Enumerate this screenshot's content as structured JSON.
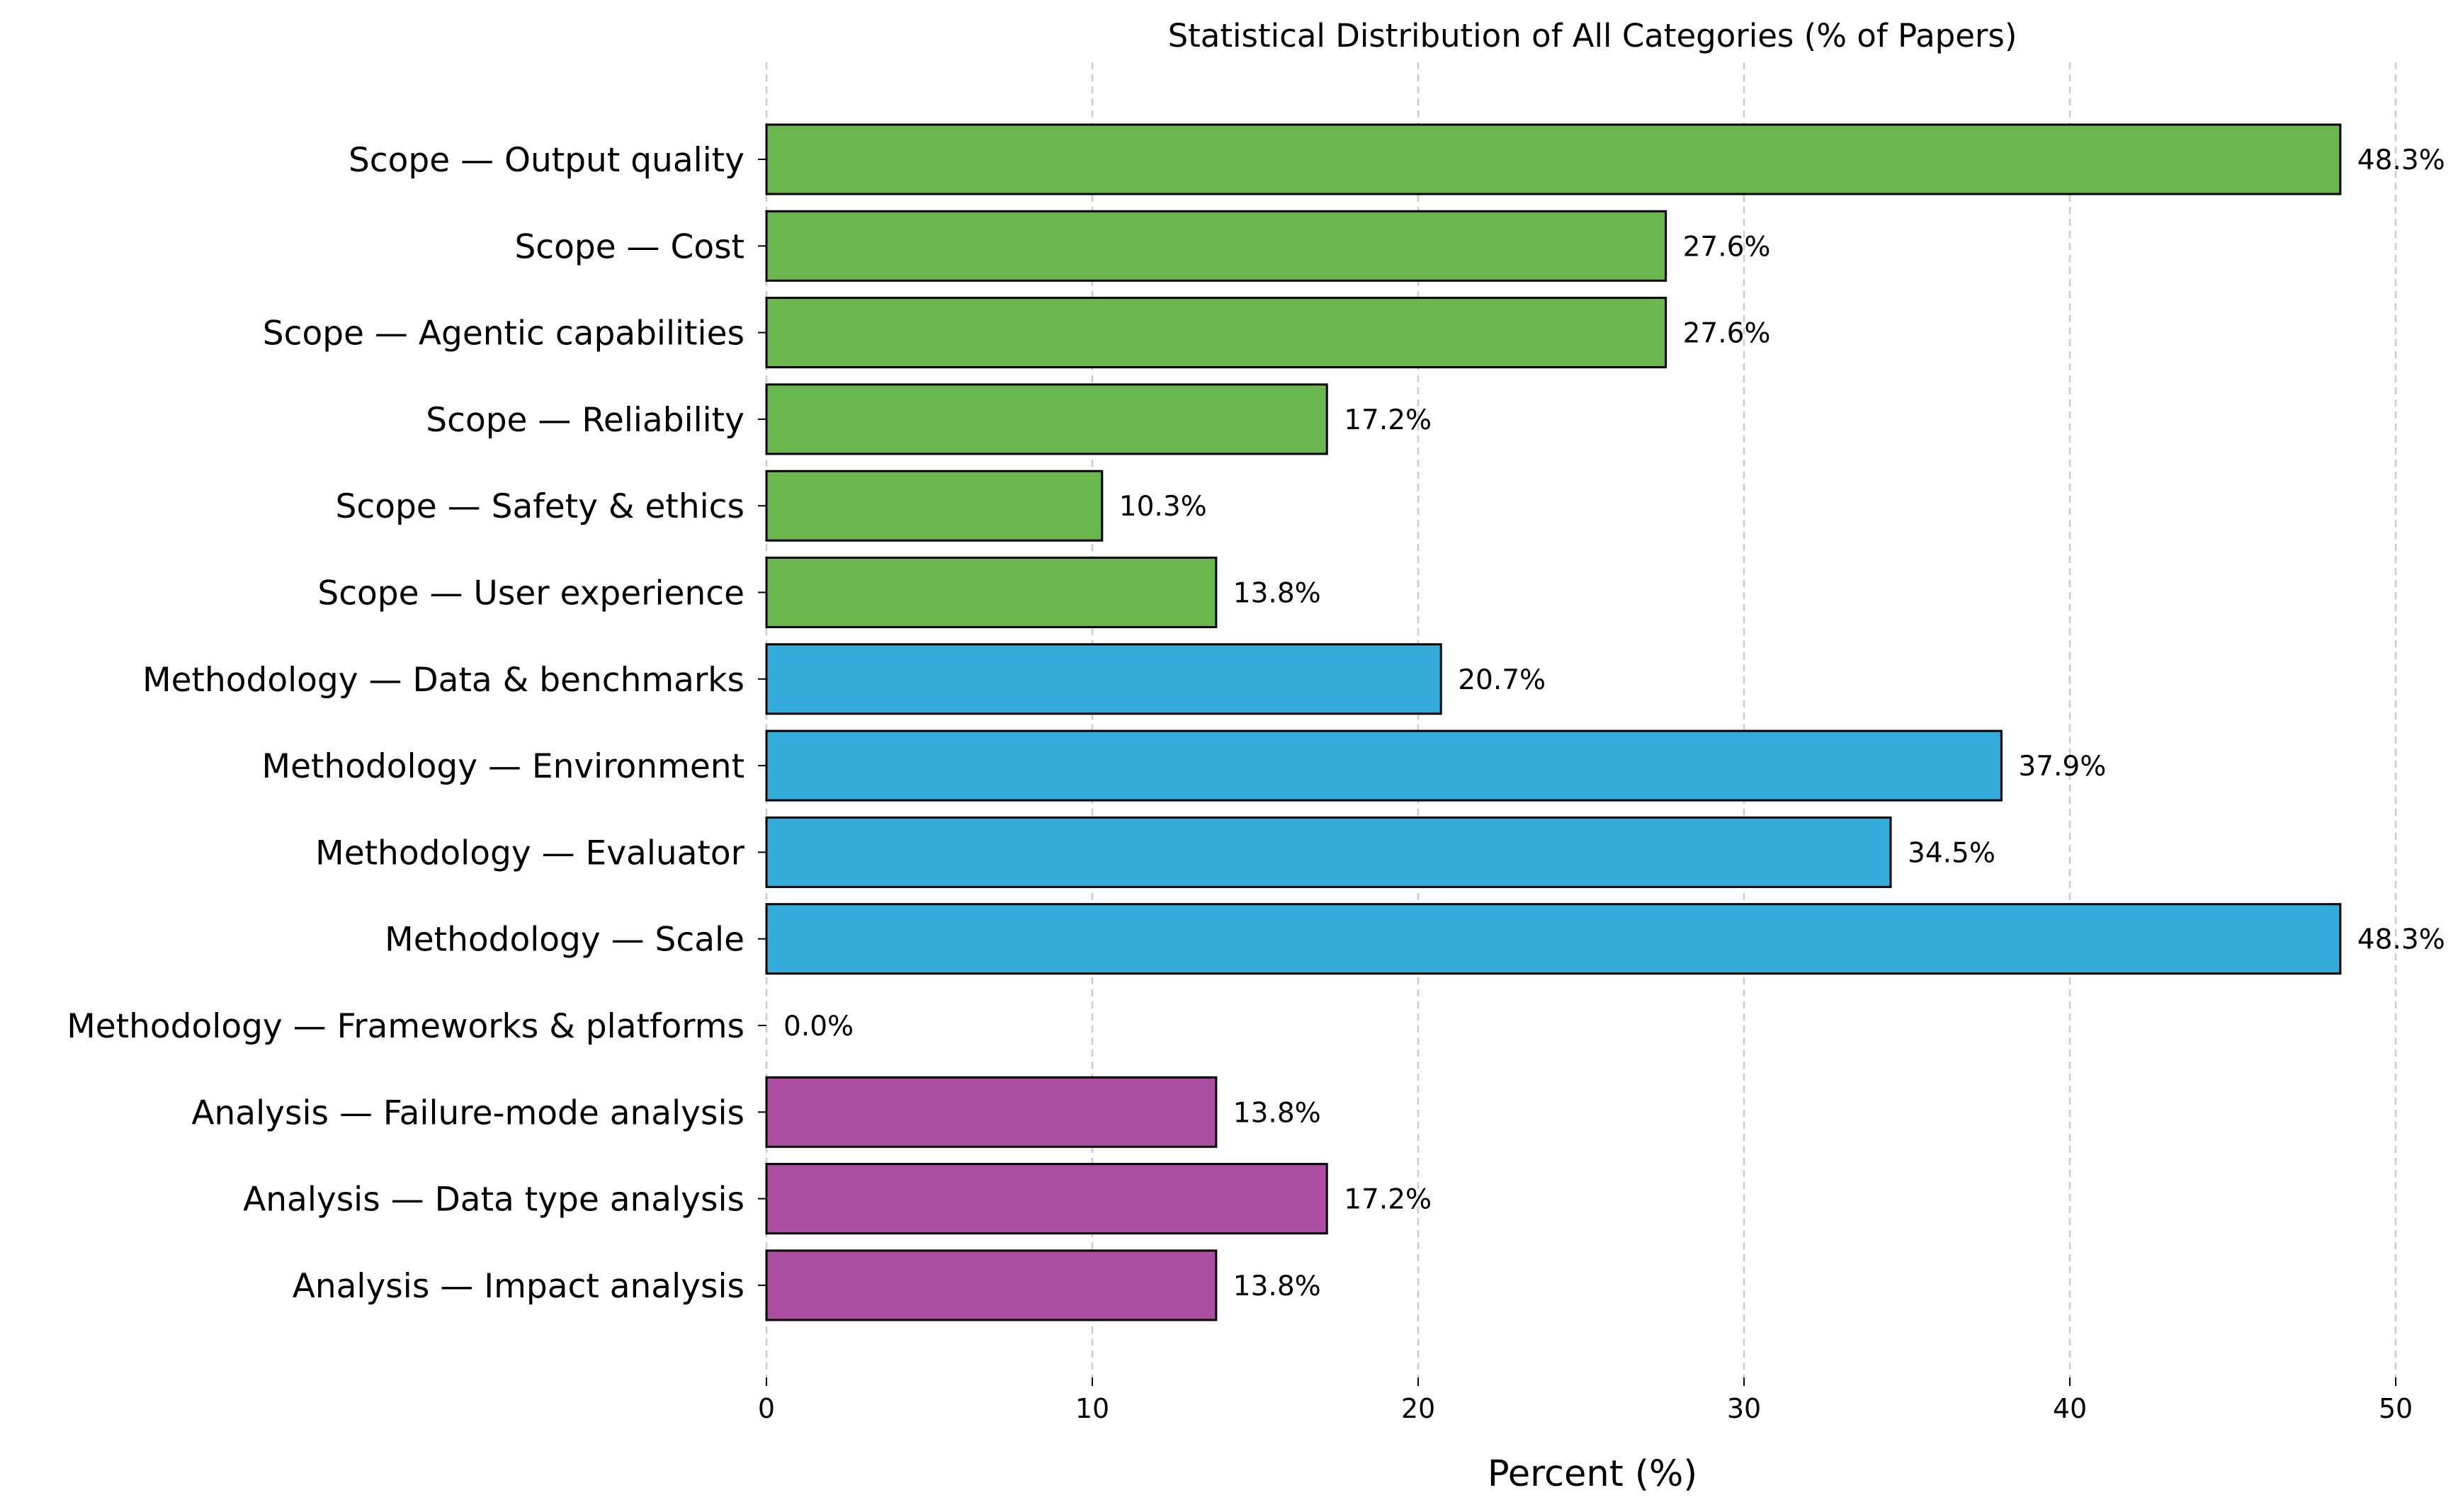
{
  "chart_data": {
    "type": "bar",
    "orientation": "horizontal",
    "title": "Statistical Distribution of All Categories (% of Papers)",
    "xlabel": "Percent (%)",
    "ylabel": "",
    "xlim": [
      0,
      50
    ],
    "xticks": [
      0,
      10,
      20,
      30,
      40,
      50
    ],
    "grid": "x-dashed",
    "value_suffix": "%",
    "groups": [
      {
        "name": "Scope",
        "color": "#6ab64f"
      },
      {
        "name": "Methodology",
        "color": "#35abdb"
      },
      {
        "name": "Analysis",
        "color": "#ab4da1"
      }
    ],
    "bars": [
      {
        "category": "Scope — Output quality",
        "value": 48.3,
        "label": "48.3%",
        "group": "Scope"
      },
      {
        "category": "Scope — Cost",
        "value": 27.6,
        "label": "27.6%",
        "group": "Scope"
      },
      {
        "category": "Scope — Agentic capabilities",
        "value": 27.6,
        "label": "27.6%",
        "group": "Scope"
      },
      {
        "category": "Scope — Reliability",
        "value": 17.2,
        "label": "17.2%",
        "group": "Scope"
      },
      {
        "category": "Scope — Safety & ethics",
        "value": 10.3,
        "label": "10.3%",
        "group": "Scope"
      },
      {
        "category": "Scope — User experience",
        "value": 13.8,
        "label": "13.8%",
        "group": "Scope"
      },
      {
        "category": "Methodology — Data & benchmarks",
        "value": 20.7,
        "label": "20.7%",
        "group": "Methodology"
      },
      {
        "category": "Methodology — Environment",
        "value": 37.9,
        "label": "37.9%",
        "group": "Methodology"
      },
      {
        "category": "Methodology — Evaluator",
        "value": 34.5,
        "label": "34.5%",
        "group": "Methodology"
      },
      {
        "category": "Methodology — Scale",
        "value": 48.3,
        "label": "48.3%",
        "group": "Methodology"
      },
      {
        "category": "Methodology — Frameworks & platforms",
        "value": 0.0,
        "label": "0.0%",
        "group": "Methodology"
      },
      {
        "category": "Analysis — Failure-mode analysis",
        "value": 13.8,
        "label": "13.8%",
        "group": "Analysis"
      },
      {
        "category": "Analysis — Data type analysis",
        "value": 17.2,
        "label": "17.2%",
        "group": "Analysis"
      },
      {
        "category": "Analysis — Impact analysis",
        "value": 13.8,
        "label": "13.8%",
        "group": "Analysis"
      }
    ]
  }
}
